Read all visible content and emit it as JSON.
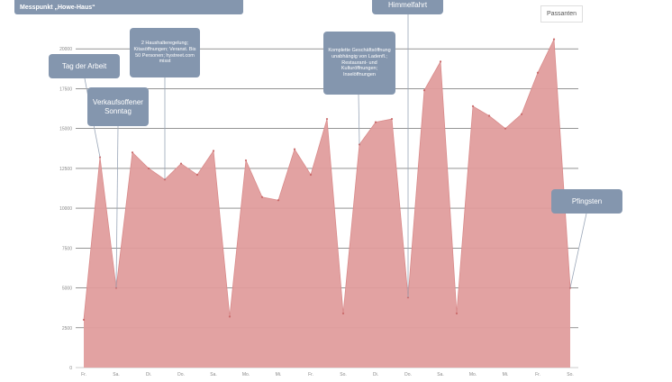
{
  "chart_data": {
    "type": "area",
    "title": "Messpunkt „Howe-Haus“",
    "legend": "Passanten",
    "color": "#e09d9d",
    "annotation_color": "#8496ae",
    "y_ticks": [
      0,
      2500,
      5000,
      7500,
      10000,
      12500,
      15000,
      17500,
      20000
    ],
    "ylim": [
      0,
      22500
    ],
    "x_labels": [
      "Fr.",
      "Sa.",
      "Di.",
      "Do.",
      "Sa.",
      "Mo.",
      "Mi.",
      "Fr.",
      "So.",
      "Di.",
      "Do.",
      "Sa.",
      "Mo.",
      "Mi.",
      "Fr.",
      "So."
    ],
    "values": [
      3000,
      13200,
      5000,
      13500,
      12500,
      11800,
      12800,
      12100,
      13600,
      3200,
      13000,
      10700,
      10500,
      13700,
      12100,
      15600,
      3400,
      14000,
      15400,
      15600,
      4400,
      17400,
      19200,
      3400,
      16400,
      15800,
      15000,
      15900,
      18500,
      20600,
      5000
    ],
    "annotations": [
      {
        "text": "Tag der Arbeit",
        "index": 1
      },
      {
        "text": "Verkaufsoffener Sonntag",
        "index": 2
      },
      {
        "text": "2 Haushalteregelung; Kitasöffnungen; Veranst. Bis 50 Personen; hystreet.com misst",
        "index": 5
      },
      {
        "text": "Komplette Geschäftsöffnung unabhängig von Ladenfl.; Restaurant- und Kulturöffnungen; Inselöffnungen",
        "index": 17
      },
      {
        "text": "Himmelfahrt",
        "index": 20
      },
      {
        "text": "Pfingsten",
        "index": 30
      }
    ]
  }
}
